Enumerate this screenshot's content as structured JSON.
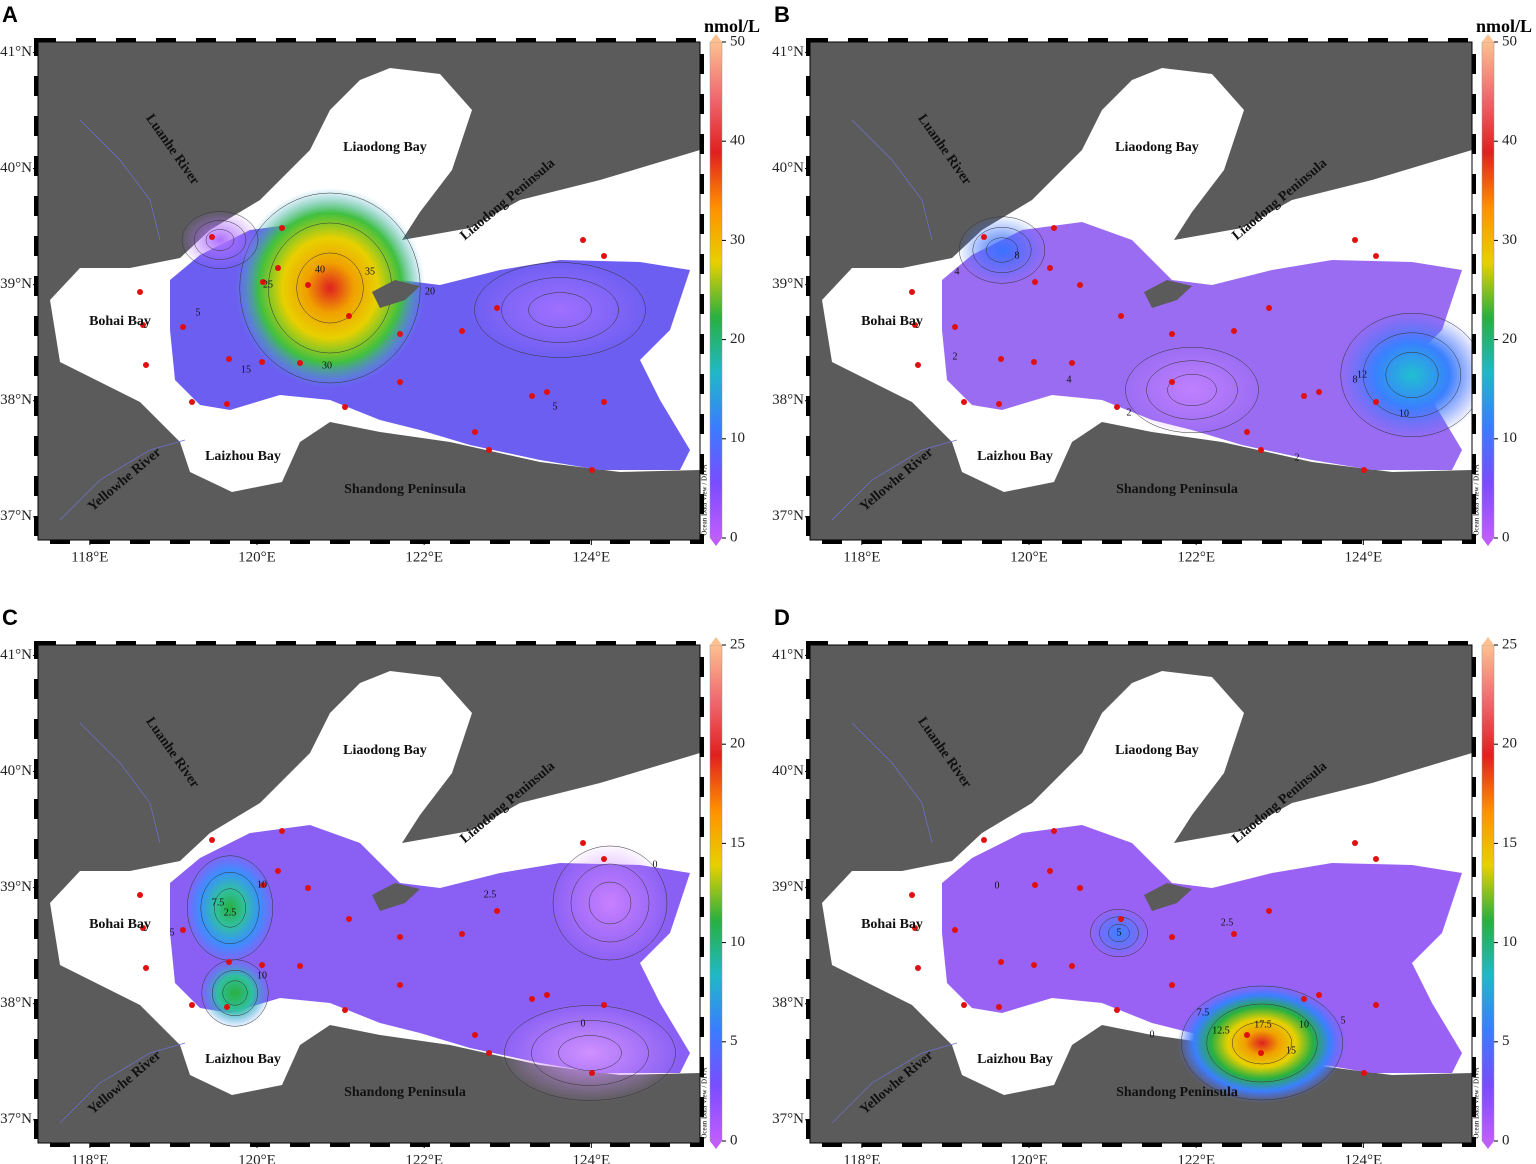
{
  "map": {
    "xlim": [
      117.38,
      125.3
    ],
    "ylim": [
      36.8,
      41.09
    ],
    "xticks": [
      {
        "value": 118,
        "label": "118°E"
      },
      {
        "value": 120,
        "label": "120°E"
      },
      {
        "value": 122,
        "label": "122°E"
      },
      {
        "value": 124,
        "label": "124°E"
      }
    ],
    "yticks": [
      {
        "value": 37,
        "label": "37°N"
      },
      {
        "value": 38,
        "label": "38°N"
      },
      {
        "value": 39,
        "label": "39°N"
      },
      {
        "value": 40,
        "label": "40°N"
      },
      {
        "value": 41,
        "label": "41°N"
      }
    ],
    "places": [
      "Liaodong Bay",
      "Liaodong Peninsula",
      "Luanhe River",
      "Bohai Bay",
      "Laizhou Bay",
      "Yellowhe River",
      "Shandong Peninsula"
    ],
    "credit": "Ocean Data View / DIVA",
    "colormap": [
      "#c05cff",
      "#7a4cff",
      "#3a7cff",
      "#20b8c8",
      "#28b040",
      "#e8d000",
      "#ff9000",
      "#e02020",
      "#f06a70",
      "#fdc090"
    ]
  },
  "panels": [
    {
      "letter": "A",
      "colorbar": {
        "unit": "nmol/L",
        "lim": [
          0,
          50
        ],
        "ticks": [
          0,
          10,
          20,
          30,
          40,
          50
        ]
      },
      "contour_labels": [
        "40",
        "35",
        "25",
        "20",
        "15",
        "30",
        "5",
        "5"
      ]
    },
    {
      "letter": "B",
      "colorbar": {
        "unit": "nmol/L",
        "lim": [
          0,
          50
        ],
        "ticks": [
          0,
          10,
          20,
          30,
          40,
          50
        ]
      },
      "contour_labels": [
        "8",
        "4",
        "2",
        "4",
        "2",
        "8",
        "12",
        "10",
        "2"
      ]
    },
    {
      "letter": "C",
      "colorbar": {
        "lim": [
          0,
          25
        ],
        "ticks": [
          0,
          5,
          10,
          15,
          20,
          25
        ]
      },
      "contour_labels": [
        "2.5",
        "10",
        "7.5",
        "10",
        "5",
        "2.5",
        "0",
        "0"
      ]
    },
    {
      "letter": "D",
      "colorbar": {
        "lim": [
          0,
          25
        ],
        "ticks": [
          0,
          5,
          10,
          15,
          20,
          25
        ]
      },
      "contour_labels": [
        "0",
        "2.5",
        "5",
        "12.5",
        "17.5",
        "7.5",
        "10",
        "15",
        "5",
        "0"
      ]
    }
  ]
}
